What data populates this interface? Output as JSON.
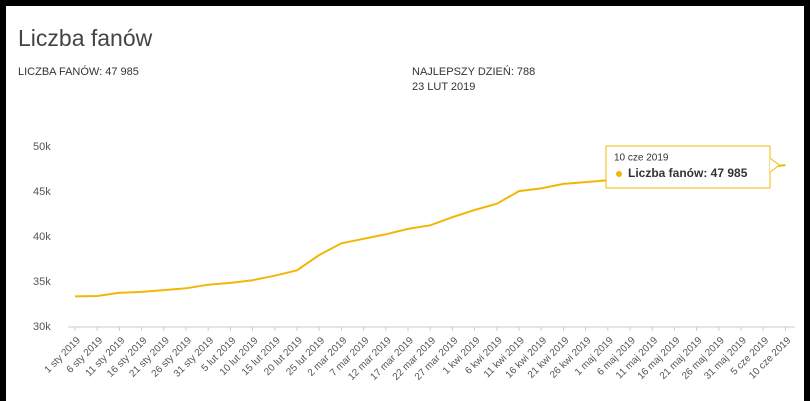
{
  "chart_data": {
    "type": "line",
    "title": "Liczba fanów",
    "stats": [
      "LICZBA FANÓW: 47 985",
      "NAJLEPSZY DZIEŃ: 788"
    ],
    "best_day_date": "23 LUT 2019",
    "categories": [
      "1 sty 2019",
      "6 sty 2019",
      "11 sty 2019",
      "16 sty 2019",
      "21 sty 2019",
      "26 sty 2019",
      "31 sty 2019",
      "5 lut 2019",
      "10 lut 2019",
      "15 lut 2019",
      "20 lut 2019",
      "25 lut 2019",
      "2 mar 2019",
      "7 mar 2019",
      "12 mar 2019",
      "17 mar 2019",
      "22 mar 2019",
      "27 mar 2019",
      "1 kwi 2019",
      "6 kwi 2019",
      "11 kwi 2019",
      "16 kwi 2019",
      "21 kwi 2019",
      "26 kwi 2019",
      "1 maj 2019",
      "6 maj 2019",
      "11 maj 2019",
      "16 maj 2019",
      "21 maj 2019",
      "26 maj 2019",
      "31 maj 2019",
      "5 cze 2019",
      "10 cze 2019"
    ],
    "values": [
      33400,
      33450,
      33800,
      33900,
      34100,
      34300,
      34700,
      34900,
      35200,
      35700,
      36300,
      38000,
      39300,
      39800,
      40300,
      40900,
      41300,
      42200,
      43000,
      43700,
      45100,
      45400,
      45900,
      46100,
      46300,
      46800,
      46900,
      47000,
      47200,
      47300,
      47400,
      47700,
      47985
    ],
    "color": "#f2b705",
    "ylim": [
      30000,
      50000
    ],
    "yticks": [
      {
        "value": 30000,
        "label": "30k"
      },
      {
        "value": 35000,
        "label": "35k"
      },
      {
        "value": 40000,
        "label": "40k"
      },
      {
        "value": 45000,
        "label": "45k"
      },
      {
        "value": 50000,
        "label": "50k"
      }
    ],
    "grid": false,
    "tooltip": {
      "title": "10 cze 2019",
      "text": "Liczba fanów: 47 985"
    }
  }
}
